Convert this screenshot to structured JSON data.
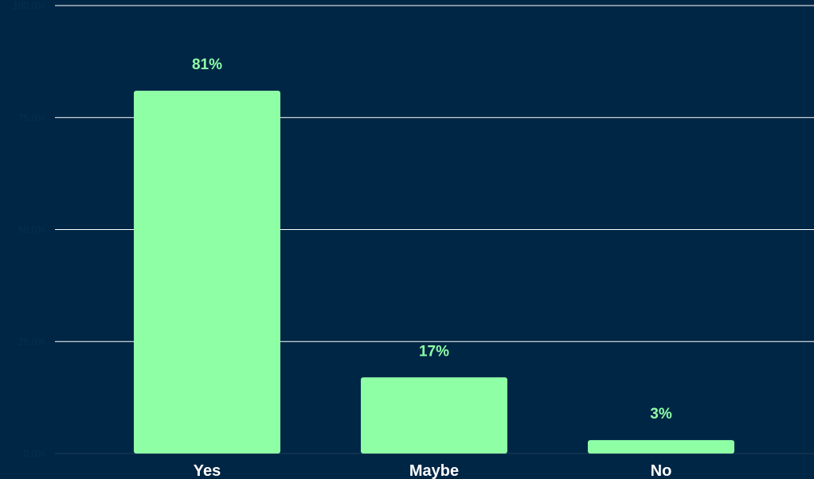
{
  "colors": {
    "background": "#002645",
    "bar": "#8fffa6",
    "gridline": "#ffffff",
    "axis_label": "#ffffff",
    "data_label": "#8fffa6",
    "tick_label": "#0a2f4e"
  },
  "chart_data": {
    "type": "bar",
    "categories": [
      "Yes",
      "Maybe",
      "No"
    ],
    "values": [
      81,
      17,
      3
    ],
    "data_labels": [
      "81%",
      "17%",
      "3%"
    ],
    "yticks": [
      0,
      25,
      50,
      75,
      100
    ],
    "ytick_labels": [
      "0.0%",
      "25.0%",
      "50.0%",
      "75.0%",
      "100.0%"
    ],
    "ylim": [
      0,
      100
    ],
    "title": "",
    "xlabel": "",
    "ylabel": "",
    "grid": true,
    "legend": "none"
  }
}
